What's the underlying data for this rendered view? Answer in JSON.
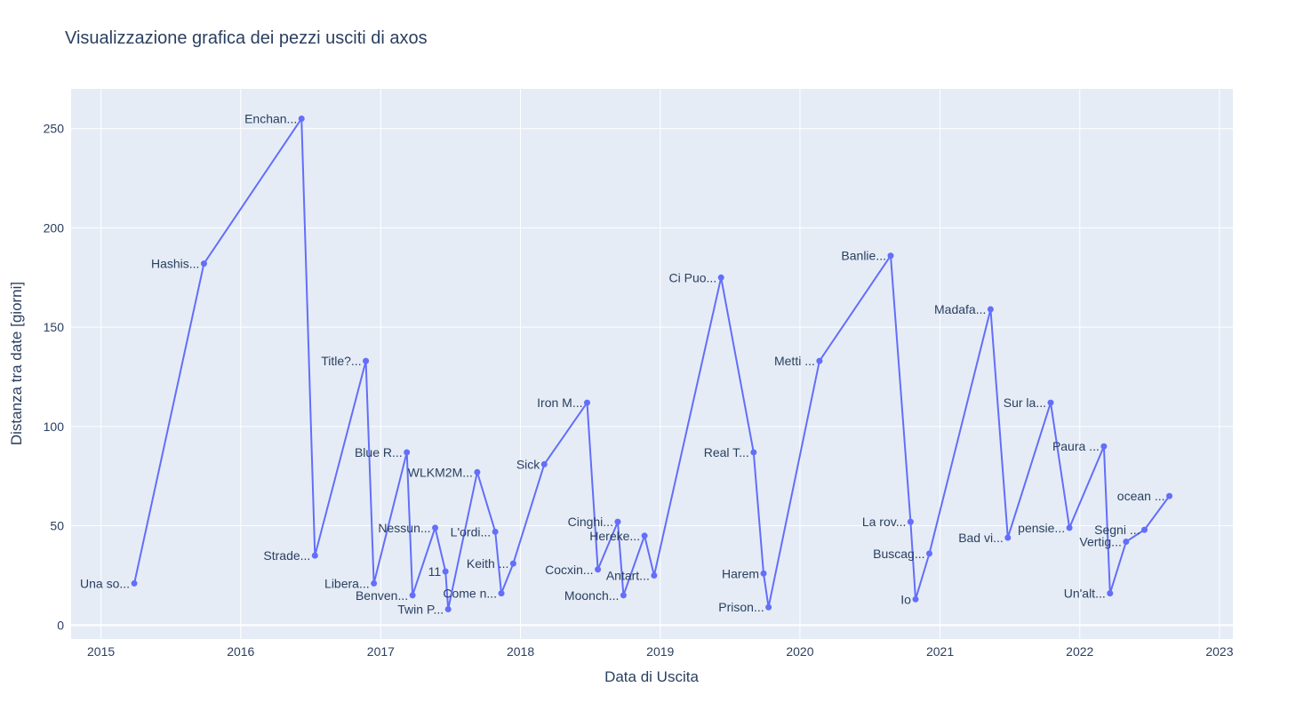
{
  "chart_data": {
    "type": "line",
    "title": "Visualizzazione grafica dei pezzi usciti di axos",
    "xlabel": "Data di Uscita",
    "ylabel": "Distanza tra date [giorni]",
    "x_ticks": [
      "2015",
      "2016",
      "2017",
      "2018",
      "2019",
      "2020",
      "2021",
      "2022",
      "2023"
    ],
    "y_ticks": [
      "0",
      "50",
      "100",
      "150",
      "200",
      "250"
    ],
    "xlim": [
      "2014-10-15",
      "2023-02-05"
    ],
    "ylim": [
      -7,
      270
    ],
    "grid": true,
    "colors": {
      "line": "#636efa",
      "plot_bg": "#e5ecf6",
      "grid": "#ffffff",
      "text": "#2a3f5f"
    },
    "series": [
      {
        "points": [
          {
            "x": "2015-03-29",
            "y": 21,
            "label": "Una so..."
          },
          {
            "x": "2015-09-27",
            "y": 182,
            "label": "Hashis..."
          },
          {
            "x": "2016-06-08",
            "y": 255,
            "label": "Enchan..."
          },
          {
            "x": "2016-07-13",
            "y": 35,
            "label": "Strade..."
          },
          {
            "x": "2016-11-23",
            "y": 133,
            "label": "Title?..."
          },
          {
            "x": "2016-12-14",
            "y": 21,
            "label": "Libera..."
          },
          {
            "x": "2017-03-10",
            "y": 87,
            "label": "Blue R..."
          },
          {
            "x": "2017-03-25",
            "y": 15,
            "label": "Benven..."
          },
          {
            "x": "2017-05-23",
            "y": 49,
            "label": "Nessun..."
          },
          {
            "x": "2017-06-19",
            "y": 27,
            "label": "11"
          },
          {
            "x": "2017-06-26",
            "y": 8,
            "label": "Twin P..."
          },
          {
            "x": "2017-09-10",
            "y": 77,
            "label": "WLKM2M..."
          },
          {
            "x": "2017-10-27",
            "y": 47,
            "label": "L'ordi..."
          },
          {
            "x": "2017-11-12",
            "y": 16,
            "label": "Come n..."
          },
          {
            "x": "2017-12-13",
            "y": 31,
            "label": "Keith ..."
          },
          {
            "x": "2018-03-04",
            "y": 81,
            "label": "Sick"
          },
          {
            "x": "2018-06-24",
            "y": 112,
            "label": "Iron M..."
          },
          {
            "x": "2018-07-22",
            "y": 28,
            "label": "Cocxin..."
          },
          {
            "x": "2018-09-12",
            "y": 52,
            "label": "Cinghi..."
          },
          {
            "x": "2018-09-27",
            "y": 15,
            "label": "Moonch..."
          },
          {
            "x": "2018-11-21",
            "y": 45,
            "label": "Hereke..."
          },
          {
            "x": "2018-12-16",
            "y": 25,
            "label": "Antart..."
          },
          {
            "x": "2019-06-09",
            "y": 175,
            "label": "Ci Puo..."
          },
          {
            "x": "2019-09-02",
            "y": 87,
            "label": "Real T..."
          },
          {
            "x": "2019-09-28",
            "y": 26,
            "label": "Harem"
          },
          {
            "x": "2019-10-11",
            "y": 9,
            "label": "Prison..."
          },
          {
            "x": "2020-02-21",
            "y": 133,
            "label": "Metti ..."
          },
          {
            "x": "2020-08-25",
            "y": 186,
            "label": "Banlie..."
          },
          {
            "x": "2020-10-16",
            "y": 52,
            "label": "La rov..."
          },
          {
            "x": "2020-10-29",
            "y": 13,
            "label": "Io"
          },
          {
            "x": "2020-12-04",
            "y": 36,
            "label": "Buscag..."
          },
          {
            "x": "2021-05-13",
            "y": 159,
            "label": "Madafa..."
          },
          {
            "x": "2021-06-27",
            "y": 44,
            "label": "Bad vi..."
          },
          {
            "x": "2021-10-17",
            "y": 112,
            "label": "Sur la..."
          },
          {
            "x": "2021-12-05",
            "y": 49,
            "label": "pensie..."
          },
          {
            "x": "2022-03-05",
            "y": 90,
            "label": "Paura ..."
          },
          {
            "x": "2022-03-21",
            "y": 16,
            "label": "Un'alt..."
          },
          {
            "x": "2022-05-02",
            "y": 42,
            "label": "Vertig..."
          },
          {
            "x": "2022-06-19",
            "y": 48,
            "label": "Segni ..."
          },
          {
            "x": "2022-08-23",
            "y": 65,
            "label": "ocean ..."
          }
        ]
      }
    ]
  }
}
